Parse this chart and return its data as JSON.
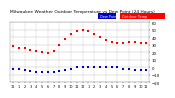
{
  "title": "Milwaukee Weather Outdoor Temperature vs Dew Point (24 Hours)",
  "title_fontsize": 3.2,
  "background_color": "#ffffff",
  "plot_bg_color": "#ffffff",
  "grid_color": "#aaaaaa",
  "temp_color": "#ff0000",
  "dew_color": "#0000cc",
  "legend_temp_color": "#ff0000",
  "legend_dew_color": "#0000cc",
  "ylim": [
    -20,
    60
  ],
  "xlim": [
    -0.5,
    23.5
  ],
  "yticks": [
    -20,
    -10,
    0,
    10,
    20,
    30,
    40,
    50,
    60
  ],
  "ytick_fontsize": 2.8,
  "xtick_fontsize": 2.5,
  "temp_x": [
    0,
    1,
    2,
    3,
    4,
    5,
    6,
    7,
    8,
    9,
    10,
    11,
    12,
    13,
    14,
    15,
    16,
    17,
    18,
    19,
    20,
    21,
    22,
    23
  ],
  "temp_y": [
    28,
    26,
    25,
    23,
    21,
    20,
    19,
    22,
    30,
    38,
    44,
    48,
    50,
    48,
    44,
    40,
    36,
    34,
    32,
    32,
    34,
    34,
    32,
    32
  ],
  "dew_x": [
    0,
    1,
    2,
    3,
    4,
    5,
    6,
    7,
    8,
    9,
    10,
    11,
    12,
    13,
    14,
    15,
    16,
    17,
    18,
    19,
    20,
    21,
    22,
    23
  ],
  "dew_y": [
    -2,
    -3,
    -4,
    -5,
    -6,
    -6,
    -7,
    -6,
    -5,
    -4,
    -2,
    0,
    0,
    0,
    0,
    0,
    0,
    0,
    0,
    -2,
    -2,
    -4,
    -4,
    -4
  ],
  "xtick_labels": [
    "12",
    "1",
    "2",
    "3",
    "4",
    "5",
    "6",
    "7",
    "8",
    "9",
    "10",
    "11",
    "12",
    "1",
    "2",
    "3",
    "4",
    "5",
    "6",
    "7",
    "8",
    "9",
    "10",
    "11"
  ],
  "vgrid_x": [
    0,
    2,
    4,
    6,
    8,
    10,
    12,
    14,
    16,
    18,
    20,
    22
  ],
  "legend_temp_label": "Outdoor Temp",
  "legend_dew_label": "Dew Point",
  "marker_size": 1.8,
  "dot_marker": "s"
}
